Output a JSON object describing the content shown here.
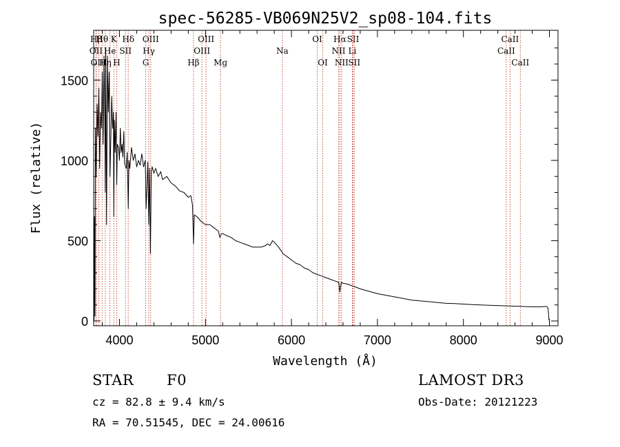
{
  "chart_data": {
    "type": "line",
    "title": "spec-56285-VB069N25V2_sp08-104.fits",
    "xlabel": "Wavelength (Å)",
    "ylabel": "Flux (relative)",
    "xlim": [
      3700,
      9100
    ],
    "ylim": [
      -30,
      1810
    ],
    "xticks": [
      4000,
      5000,
      6000,
      7000,
      8000,
      9000
    ],
    "yticks": [
      0,
      500,
      1000,
      1500
    ],
    "series": [
      {
        "name": "spectrum",
        "x": [
          3705,
          3710,
          3715,
          3720,
          3730,
          3740,
          3750,
          3760,
          3770,
          3780,
          3790,
          3800,
          3810,
          3820,
          3830,
          3835,
          3840,
          3850,
          3860,
          3870,
          3880,
          3889,
          3900,
          3910,
          3920,
          3930,
          3934,
          3940,
          3950,
          3960,
          3968,
          3975,
          3990,
          4000,
          4010,
          4020,
          4030,
          4040,
          4050,
          4060,
          4080,
          4090,
          4102,
          4110,
          4120,
          4140,
          4160,
          4180,
          4200,
          4220,
          4240,
          4260,
          4280,
          4300,
          4310,
          4330,
          4340,
          4350,
          4360,
          4370,
          4380,
          4400,
          4420,
          4450,
          4480,
          4500,
          4550,
          4600,
          4650,
          4700,
          4750,
          4800,
          4830,
          4850,
          4861,
          4870,
          4900,
          4950,
          5000,
          5050,
          5100,
          5150,
          5167,
          5183,
          5200,
          5250,
          5300,
          5350,
          5400,
          5450,
          5500,
          5550,
          5600,
          5650,
          5700,
          5720,
          5750,
          5780,
          5800,
          5850,
          5890,
          5900,
          5950,
          6000,
          6050,
          6100,
          6150,
          6200,
          6250,
          6300,
          6350,
          6400,
          6450,
          6500,
          6550,
          6563,
          6580,
          6600,
          6650,
          6700,
          6750,
          6800,
          6900,
          7000,
          7100,
          7200,
          7300,
          7400,
          7500,
          7600,
          7700,
          7800,
          7900,
          8000,
          8100,
          8200,
          8300,
          8400,
          8500,
          8542,
          8600,
          8662,
          8700,
          8800,
          8900,
          8950,
          8970,
          8985,
          8990,
          8995
        ],
        "y": [
          0,
          650,
          30,
          1200,
          900,
          1350,
          1150,
          1450,
          950,
          1300,
          1200,
          1550,
          1100,
          1650,
          1250,
          800,
          1700,
          600,
          1650,
          1300,
          1550,
          900,
          1150,
          1400,
          1200,
          1300,
          650,
          1250,
          1050,
          1300,
          850,
          1100,
          1080,
          1000,
          1200,
          1050,
          1100,
          1020,
          1180,
          980,
          950,
          1050,
          700,
          1000,
          950,
          1080,
          1000,
          1040,
          960,
          1000,
          970,
          1040,
          960,
          1000,
          700,
          990,
          600,
          950,
          420,
          930,
          960,
          920,
          950,
          900,
          930,
          880,
          900,
          860,
          840,
          810,
          800,
          770,
          780,
          720,
          480,
          660,
          650,
          620,
          600,
          600,
          580,
          560,
          520,
          540,
          545,
          530,
          520,
          500,
          490,
          480,
          470,
          460,
          460,
          460,
          470,
          480,
          470,
          500,
          490,
          460,
          430,
          420,
          400,
          380,
          360,
          350,
          330,
          320,
          300,
          290,
          280,
          270,
          260,
          250,
          240,
          180,
          240,
          235,
          230,
          220,
          210,
          200,
          185,
          170,
          160,
          150,
          140,
          130,
          125,
          120,
          115,
          110,
          108,
          105,
          102,
          100,
          98,
          96,
          94,
          93,
          92,
          92,
          90,
          88,
          88,
          90,
          90,
          80,
          40,
          5
        ]
      }
    ],
    "emission_lines": [
      {
        "name": "Hβ",
        "wl": 3730,
        "row": 1
      },
      {
        "name": "OII",
        "wl": 3727,
        "row": 2
      },
      {
        "name": "OIII",
        "wl": 3760,
        "row": 3
      },
      {
        "name": "Hθ",
        "wl": 3798,
        "row": 1
      },
      {
        "name": "Hη",
        "wl": 3835,
        "row": 3
      },
      {
        "name": "He",
        "wl": 3889,
        "row": 2
      },
      {
        "name": "K",
        "wl": 3934,
        "row": 1
      },
      {
        "name": "H",
        "wl": 3968,
        "row": 3
      },
      {
        "name": "SII",
        "wl": 4070,
        "row": 2
      },
      {
        "name": "Hδ",
        "wl": 4102,
        "row": 1
      },
      {
        "name": "OIII",
        "wl": 4363,
        "row": 1
      },
      {
        "name": "Hγ",
        "wl": 4341,
        "row": 2
      },
      {
        "name": "G",
        "wl": 4305,
        "row": 3
      },
      {
        "name": "Hβ",
        "wl": 4861,
        "row": 3
      },
      {
        "name": "OIII",
        "wl": 5007,
        "row": 1
      },
      {
        "name": "OIII",
        "wl": 4959,
        "row": 2
      },
      {
        "name": "Mg",
        "wl": 5175,
        "row": 3
      },
      {
        "name": "Na",
        "wl": 5894,
        "row": 2
      },
      {
        "name": "OI",
        "wl": 6300,
        "row": 1
      },
      {
        "name": "OI",
        "wl": 6364,
        "row": 3
      },
      {
        "name": "Hα",
        "wl": 6563,
        "row": 1
      },
      {
        "name": "NII",
        "wl": 6548,
        "row": 2
      },
      {
        "name": "NII",
        "wl": 6583,
        "row": 3
      },
      {
        "name": "SII",
        "wl": 6717,
        "row": 1
      },
      {
        "name": "Li",
        "wl": 6708,
        "row": 2
      },
      {
        "name": "SII",
        "wl": 6731,
        "row": 3
      },
      {
        "name": "CaII",
        "wl": 8542,
        "row": 1
      },
      {
        "name": "CaII",
        "wl": 8498,
        "row": 2
      },
      {
        "name": "CaII",
        "wl": 8662,
        "row": 3
      }
    ]
  },
  "info": {
    "object_class": "STAR",
    "subclass": "F0",
    "survey": "LAMOST DR3",
    "cz": "cz = 82.8 ± 9.4 km/s",
    "obs_date": "Obs-Date: 20121223",
    "coords": "RA =  70.51545, DEC =  24.00616"
  }
}
